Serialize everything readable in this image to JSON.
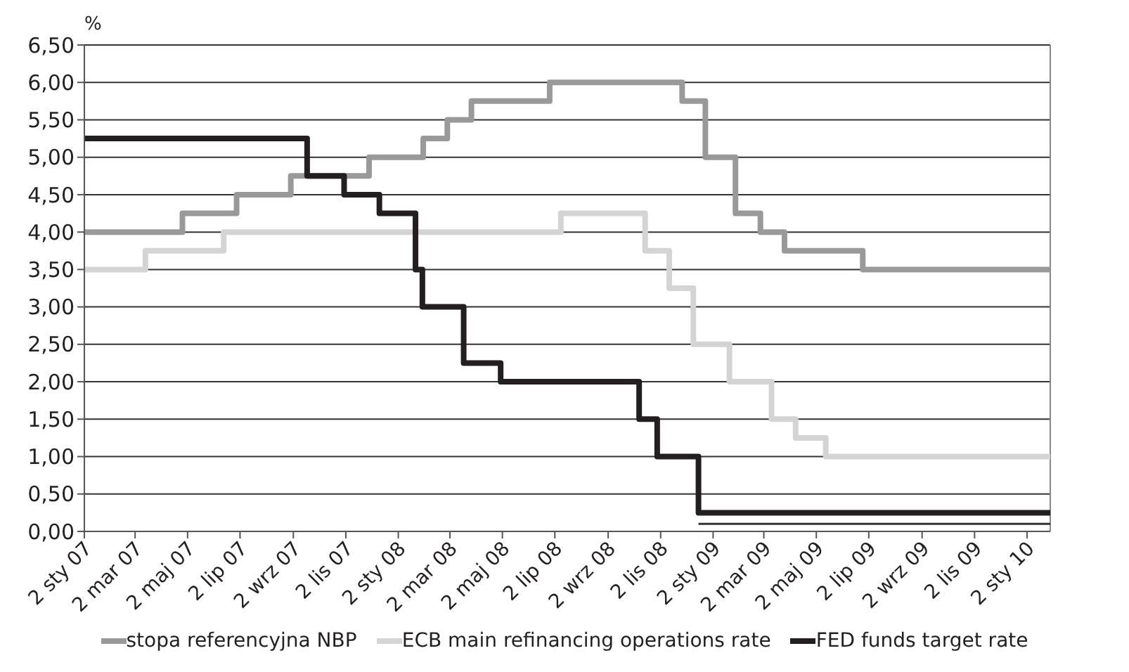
{
  "chart_data": {
    "type": "step",
    "ylabel": "%",
    "xlim": [
      "2007-01-02",
      "2010-01-29"
    ],
    "xticks": [
      {
        "value": "2007-01-02",
        "label": "2 sty 07"
      },
      {
        "value": "2007-03-02",
        "label": "2 mar 07"
      },
      {
        "value": "2007-05-02",
        "label": "2 maj 07"
      },
      {
        "value": "2007-07-02",
        "label": "2 lip 07"
      },
      {
        "value": "2007-09-02",
        "label": "2 wrz 07"
      },
      {
        "value": "2007-11-02",
        "label": "2 lis 07"
      },
      {
        "value": "2008-01-02",
        "label": "2 sty 08"
      },
      {
        "value": "2008-03-02",
        "label": "2 mar 08"
      },
      {
        "value": "2008-05-02",
        "label": "2 maj 08"
      },
      {
        "value": "2008-07-02",
        "label": "2 lip 08"
      },
      {
        "value": "2008-09-02",
        "label": "2 wrz 08"
      },
      {
        "value": "2008-11-02",
        "label": "2 lis 08"
      },
      {
        "value": "2009-01-02",
        "label": "2 sty 09"
      },
      {
        "value": "2009-03-02",
        "label": "2 mar 09"
      },
      {
        "value": "2009-05-02",
        "label": "2 maj 09"
      },
      {
        "value": "2009-07-02",
        "label": "2 lip 09"
      },
      {
        "value": "2009-09-02",
        "label": "2 wrz 09"
      },
      {
        "value": "2009-11-02",
        "label": "2 lis 09"
      },
      {
        "value": "2010-01-02",
        "label": "2 sty 10"
      }
    ],
    "ylim": [
      0,
      6.5
    ],
    "yticks": [
      {
        "value": 0,
        "label": "0,00"
      },
      {
        "value": 0.5,
        "label": "0,50"
      },
      {
        "value": 1,
        "label": "1,00"
      },
      {
        "value": 1.5,
        "label": "1,50"
      },
      {
        "value": 2,
        "label": "2,00"
      },
      {
        "value": 2.5,
        "label": "2,50"
      },
      {
        "value": 3,
        "label": "3,00"
      },
      {
        "value": 3.5,
        "label": "3,50"
      },
      {
        "value": 4,
        "label": "4,00"
      },
      {
        "value": 4.5,
        "label": "4,50"
      },
      {
        "value": 5,
        "label": "5,00"
      },
      {
        "value": 5.5,
        "label": "5,50"
      },
      {
        "value": 6,
        "label": "6,00"
      },
      {
        "value": 6.5,
        "label": "6,50"
      }
    ],
    "grid": "y",
    "legend": "bottom",
    "line_style": "solid",
    "marker": "none",
    "series": [
      {
        "name": "stopa referencyjna NBP",
        "color": "#999999",
        "x": [
          "2007-01-02",
          "2007-04-26",
          "2007-06-28",
          "2007-08-30",
          "2007-11-29",
          "2008-01-31",
          "2008-02-28",
          "2008-03-27",
          "2008-06-26",
          "2008-11-27",
          "2008-12-24",
          "2009-01-28",
          "2009-02-26",
          "2009-03-26",
          "2009-06-25",
          "2010-01-29"
        ],
        "values": [
          4,
          4.25,
          4.5,
          4.75,
          5,
          5.25,
          5.5,
          5.75,
          6,
          5.75,
          5,
          4.25,
          4,
          3.75,
          3.5,
          3.5
        ]
      },
      {
        "name": "ECB main refinancing operations rate",
        "color": "#d4d4d4",
        "x": [
          "2007-01-02",
          "2007-03-14",
          "2007-06-13",
          "2008-07-09",
          "2008-10-15",
          "2008-11-12",
          "2008-12-10",
          "2009-01-21",
          "2009-03-11",
          "2009-04-08",
          "2009-05-13",
          "2010-01-29"
        ],
        "values": [
          3.5,
          3.75,
          4,
          4.25,
          3.75,
          3.25,
          2.5,
          2,
          1.5,
          1.25,
          1,
          1
        ]
      },
      {
        "name": "FED funds target rate",
        "color": "#231f20",
        "x": [
          "2007-01-02",
          "2007-09-18",
          "2007-10-31",
          "2007-12-11",
          "2008-01-22",
          "2008-01-30",
          "2008-03-18",
          "2008-04-30",
          "2008-10-08",
          "2008-10-29",
          "2008-12-16",
          "2010-01-29"
        ],
        "values": [
          5.25,
          4.75,
          4.5,
          4.25,
          3.5,
          3,
          2.25,
          2,
          1.5,
          1,
          0.25,
          0.25
        ]
      },
      {
        "color": "#333333",
        "x": [
          "2008-12-16",
          "2010-01-29"
        ],
        "values": [
          0.1,
          0.1
        ],
        "line_style": "solid"
      }
    ]
  }
}
